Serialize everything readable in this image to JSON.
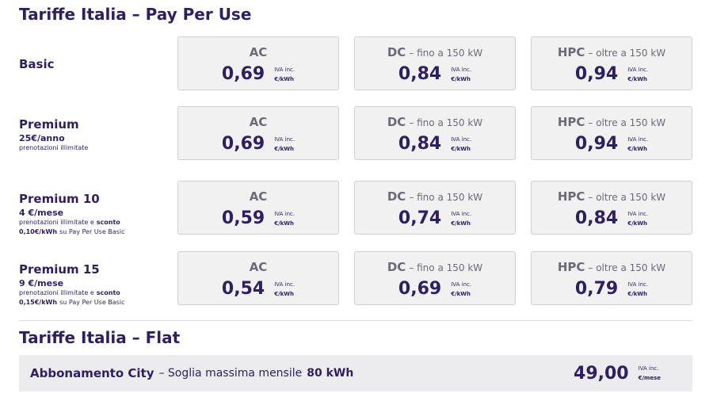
{
  "pay_per_use": {
    "title": "Tariffe Italia – Pay Per Use",
    "plans": [
      {
        "name": "Basic",
        "tariffs": [
          {
            "type": "AC",
            "price": "0,69",
            "vat": "IVA inc.",
            "unit": "€/kWh"
          },
          {
            "type": "DC",
            "detail": "– fino a 150 kW",
            "price": "0,84",
            "vat": "IVA inc.",
            "unit": "€/kWh"
          },
          {
            "type": "HPC",
            "detail": "– oltre a 150 kW",
            "price": "0,94",
            "vat": "IVA inc.",
            "unit": "€/kWh"
          }
        ]
      },
      {
        "name": "Premium",
        "fee": "25€/anno",
        "description": [
          "prenotazioni illimitate"
        ],
        "tariffs": [
          {
            "type": "AC",
            "price": "0,69",
            "vat": "IVA inc.",
            "unit": "€/kWh"
          },
          {
            "type": "DC",
            "detail": "– fino a 150 kW",
            "price": "0,84",
            "vat": "IVA inc.",
            "unit": "€/kWh"
          },
          {
            "type": "HPC",
            "detail": "– oltre a 150 kW",
            "price": "0,94",
            "vat": "IVA inc.",
            "unit": "€/kWh"
          }
        ]
      },
      {
        "name": "Premium 10",
        "fee": "4 €/mese",
        "description": [
          "prenotazioni illimitate e",
          "sconto",
          "0,10€/kWh",
          "su Pay Per Use Basic"
        ],
        "tariffs": [
          {
            "type": "AC",
            "price": "0,59",
            "vat": "IVA inc.",
            "unit": "€/kWh"
          },
          {
            "type": "DC",
            "detail": "– fino a 150 kW",
            "price": "0,74",
            "vat": "IVA inc.",
            "unit": "€/kWh"
          },
          {
            "type": "HPC",
            "detail": "– oltre a 150 kW",
            "price": "0,84",
            "vat": "IVA inc.",
            "unit": "€/kWh"
          }
        ]
      },
      {
        "name": "Premium 15",
        "fee": "9 €/mese",
        "description": [
          "prenotazioni illimitate e",
          "sconto",
          "0,15€/kWh",
          "su Pay Per Use Basic"
        ],
        "tariffs": [
          {
            "type": "AC",
            "price": "0,54",
            "vat": "IVA inc.",
            "unit": "€/kWh"
          },
          {
            "type": "DC",
            "detail": "– fino a 150 kW",
            "price": "0,69",
            "vat": "IVA inc.",
            "unit": "€/kWh"
          },
          {
            "type": "HPC",
            "detail": "– oltre a 150 kW",
            "price": "0,79",
            "vat": "IVA inc.",
            "unit": "€/kWh"
          }
        ]
      }
    ]
  },
  "flat": {
    "title": "Tariffe Italia – Flat",
    "name": "Abbonamento City",
    "detail": "– Soglia massima mensile",
    "threshold": "80 kWh",
    "price": "49,00",
    "vat": "IVA inc.",
    "unit": "€/mese"
  }
}
